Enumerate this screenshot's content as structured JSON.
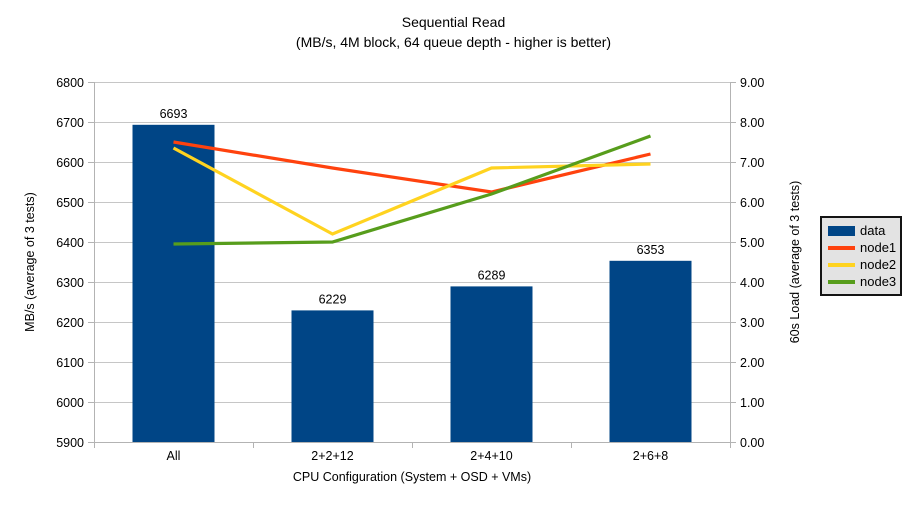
{
  "chart_data": {
    "type": "bar+line",
    "title": "Sequential Read",
    "subtitle": "(MB/s, 4M block, 64 queue depth - higher is better)",
    "xlabel": "CPU Configuration (System + OSD + VMs)",
    "ylabel_left": "MB/s (average of 3 tests)",
    "ylabel_right": "60s Load (average of 3 tests)",
    "categories": [
      "All",
      "2+2+12",
      "2+4+10",
      "2+6+8"
    ],
    "bar_series": {
      "name": "data",
      "axis": "left",
      "values": [
        6693,
        6229,
        6289,
        6353
      ],
      "labels": [
        "6693",
        "6229",
        "6289",
        "6353"
      ],
      "color": "#004586"
    },
    "line_series": [
      {
        "name": "node1",
        "axis": "right",
        "values": [
          7.5,
          6.85,
          6.25,
          7.2
        ],
        "color": "#FF420E"
      },
      {
        "name": "node2",
        "axis": "right",
        "values": [
          7.35,
          5.2,
          6.85,
          6.95
        ],
        "color": "#FFD320"
      },
      {
        "name": "node3",
        "axis": "right",
        "values": [
          4.95,
          5.0,
          6.2,
          7.65
        ],
        "color": "#579D1C"
      }
    ],
    "y_left": {
      "min": 5900,
      "max": 6800,
      "step": 100,
      "ticks": [
        "5900",
        "6000",
        "6100",
        "6200",
        "6300",
        "6400",
        "6500",
        "6600",
        "6700",
        "6800"
      ]
    },
    "y_right": {
      "min": 0,
      "max": 9,
      "step": 1,
      "ticks": [
        "0.00",
        "1.00",
        "2.00",
        "3.00",
        "4.00",
        "5.00",
        "6.00",
        "7.00",
        "8.00",
        "9.00"
      ]
    },
    "grid": true,
    "legend": {
      "position": "right",
      "items": [
        {
          "label": "data",
          "color": "#004586",
          "type": "box"
        },
        {
          "label": "node1",
          "color": "#FF420E",
          "type": "line"
        },
        {
          "label": "node2",
          "color": "#FFD320",
          "type": "line"
        },
        {
          "label": "node3",
          "color": "#579D1C",
          "type": "line"
        }
      ]
    },
    "colors": {
      "gridline": "#c6c6c6",
      "axis": "#b3b3b3",
      "legend_bg": "#e3e3e3",
      "text": "#000000"
    }
  }
}
